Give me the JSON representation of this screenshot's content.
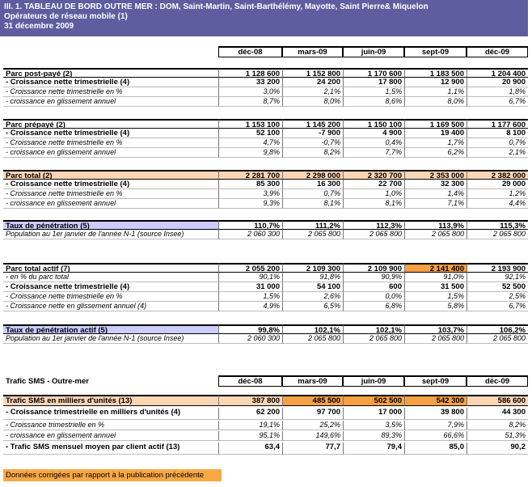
{
  "header": {
    "title": "III. 1. TABLEAU DE BORD OUTRE MER : DOM, Saint-Martin, Saint-Barthélémy, Mayotte, Saint Pierre& Miquelon",
    "subtitle": "Opérateurs de réseau mobile (1)",
    "date": "31 décembre  2009"
  },
  "columns": [
    "déc-08",
    "mars-09",
    "juin-09",
    "sept-09",
    "déc-09"
  ],
  "sections": [
    {
      "rows": [
        {
          "label": "Parc post-payé (2)",
          "values": [
            "1 128 600",
            "1 152 800",
            "1 170 600",
            "1 183 500",
            "1 204 400"
          ]
        },
        {
          "label": "- Croissance nette trimestrielle (4)",
          "values": [
            "33 200",
            "24 200",
            "17 800",
            "12 900",
            "20 900"
          ]
        },
        {
          "label": "- Croissance nette trimestrielle en %",
          "values": [
            "3,0%",
            "2,1%",
            "1,5%",
            "1,1%",
            "1,8%"
          ]
        },
        {
          "label": "- croissance en glissement annuel",
          "values": [
            "8,7%",
            "8,0%",
            "8,6%",
            "8,0%",
            "6,7%"
          ]
        }
      ]
    },
    {
      "rows": [
        {
          "label": "Parc prépayé (2)",
          "values": [
            "1 153 100",
            "1 145 200",
            "1 150 100",
            "1 169 500",
            "1 177 600"
          ]
        },
        {
          "label": "- Croissance nette trimestrielle (4)",
          "values": [
            "52 100",
            "-7 900",
            "4 900",
            "19 400",
            "8 100"
          ]
        },
        {
          "label": "- Croissance nette trimestrielle en %",
          "values": [
            "4,7%",
            "-0,7%",
            "0,4%",
            "1,7%",
            "0,7%"
          ]
        },
        {
          "label": "- croissance en glissement annuel",
          "values": [
            "9,8%",
            "8,2%",
            "7,7%",
            "6,2%",
            "2,1%"
          ]
        }
      ]
    },
    {
      "rows": [
        {
          "label": "Parc total (2)",
          "values": [
            "2 281 700",
            "2 298 000",
            "2 320 700",
            "2 353 000",
            "2 382 000"
          ]
        },
        {
          "label": "- Croissance nette trimestrielle (4)",
          "values": [
            "85 300",
            "16 300",
            "22 700",
            "32 300",
            "29 000"
          ]
        },
        {
          "label": "- Croissance nette trimestrielle en %",
          "values": [
            "3,9%",
            "0,7%",
            "1,0%",
            "1,4%",
            "1,2%"
          ]
        },
        {
          "label": "- croissance en glissement annuel",
          "values": [
            "9,3%",
            "8,1%",
            "8,1%",
            "7,1%",
            "4,4%"
          ]
        }
      ]
    },
    {
      "rows": [
        {
          "label": "Taux de pénétration (5)",
          "values": [
            "110,7%",
            "111,2%",
            "112,3%",
            "113,9%",
            "115,3%"
          ]
        },
        {
          "label": "Population au 1er janvier de l'année N-1 (source Insee)",
          "values": [
            "2 060 300",
            "2 065 800",
            "2 065 800",
            "2 065 800",
            "2 065 800"
          ]
        }
      ]
    },
    {
      "rows": [
        {
          "label": "Parc total actif (7)",
          "values": [
            "2 055 200",
            "2 109 300",
            "2 109 900",
            "2 141 400",
            "2 193 900"
          ]
        },
        {
          "label": "- en % du parc total",
          "values": [
            "90,1%",
            "91,8%",
            "90,9%",
            "91,0%",
            "92,1%"
          ]
        },
        {
          "label": "- Croissance nette trimestrielle (4)",
          "values": [
            "31 000",
            "54 100",
            "600",
            "31 500",
            "52 500"
          ]
        },
        {
          "label": "- Croissance nette trimestrielle en %",
          "values": [
            "1,5%",
            "2,6%",
            "0,0%",
            "1,5%",
            "2,5%"
          ]
        },
        {
          "label": "- Croissance nette en glissement annuel (4)",
          "values": [
            "4,9%",
            "6,5%",
            "6,8%",
            "5,8%",
            "6,7%"
          ]
        }
      ]
    },
    {
      "rows": [
        {
          "label": "Taux de pénétration actif (5)",
          "values": [
            "99,8%",
            "102,1%",
            "102,1%",
            "103,7%",
            "106,2%"
          ]
        },
        {
          "label": "Population au 1er janvier de l'année N-1 (source Insee)",
          "values": [
            "2 060 300",
            "2 065 800",
            "2 065 800",
            "2 065 800",
            "2 065 800"
          ]
        }
      ]
    }
  ],
  "sms": {
    "title": "Trafic SMS - Outre-mer",
    "columns": [
      "déc-08",
      "mars-09",
      "juin-09",
      "sept-09",
      "déc-09"
    ],
    "rows": [
      {
        "label": "Trafic SMS en milliers d'unités (13)",
        "values": [
          "387 800",
          "485 500",
          "502 500",
          "542 300",
          "586 600"
        ]
      },
      {
        "label": "- Croissance trimestrielle en milliers d'unités (4)",
        "values": [
          "62 200",
          "97 700",
          "17 000",
          "39 800",
          "44 300"
        ]
      },
      {
        "label": "- Croissance trimestrielle en %",
        "values": [
          "19,1%",
          "25,2%",
          "3,5%",
          "7,9%",
          "8,2%"
        ]
      },
      {
        "label": "- croissance en glissement annuel",
        "values": [
          "95,1%",
          "149,6%",
          "89,3%",
          "66,6%",
          "51,3%"
        ]
      },
      {
        "label": "- Trafic SMS mensuel moyen par client actif (13)",
        "values": [
          "63,4",
          "77,7",
          "79,4",
          "85,0",
          "90,2"
        ]
      }
    ]
  },
  "footnote": "Données corrigées par rapport à la publication précédente"
}
